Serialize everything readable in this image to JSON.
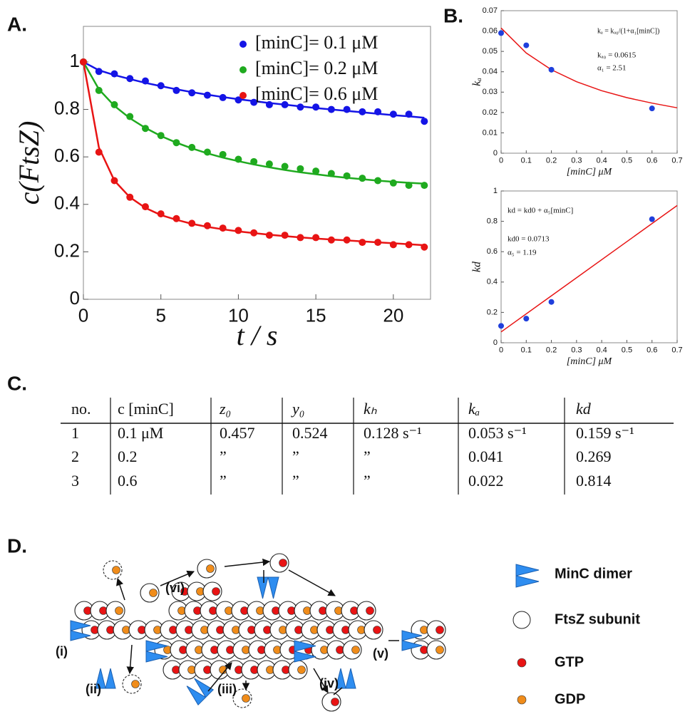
{
  "panel_labels": [
    "A.",
    "B.",
    "C.",
    "D."
  ],
  "chart_data": [
    {
      "type": "scatter-fit",
      "xlabel": "t / s",
      "ylabel": "c(FtsZ)",
      "x": [
        0,
        1,
        2,
        3,
        4,
        5,
        6,
        7,
        8,
        9,
        10,
        11,
        12,
        13,
        14,
        15,
        16,
        17,
        18,
        19,
        20,
        21,
        22
      ],
      "xlim": [
        0,
        22.4
      ],
      "ylim": [
        0,
        1.15
      ],
      "xticks": [
        0,
        5,
        10,
        15,
        20
      ],
      "yticks": [
        0,
        0.2,
        0.4,
        0.6,
        0.8,
        1
      ],
      "series": [
        {
          "name": "[minC]= 0.1 μM",
          "color": "#1414e6",
          "values": [
            1,
            0.96,
            0.95,
            0.93,
            0.92,
            0.9,
            0.88,
            0.87,
            0.86,
            0.85,
            0.84,
            0.83,
            0.82,
            0.82,
            0.81,
            0.81,
            0.8,
            0.8,
            0.79,
            0.79,
            0.78,
            0.78,
            0.75
          ],
          "fit": [
            1,
            0.965,
            0.945,
            0.928,
            0.912,
            0.898,
            0.885,
            0.873,
            0.862,
            0.852,
            0.843,
            0.835,
            0.827,
            0.82,
            0.813,
            0.806,
            0.8,
            0.794,
            0.788,
            0.782,
            0.776,
            0.771,
            0.765
          ]
        },
        {
          "name": "[minC]= 0.2 μM",
          "color": "#1faa1f",
          "values": [
            1,
            0.88,
            0.82,
            0.77,
            0.72,
            0.69,
            0.66,
            0.64,
            0.62,
            0.61,
            0.59,
            0.58,
            0.57,
            0.56,
            0.55,
            0.54,
            0.53,
            0.52,
            0.51,
            0.5,
            0.49,
            0.48,
            0.48
          ],
          "fit": [
            1,
            0.885,
            0.815,
            0.763,
            0.722,
            0.688,
            0.66,
            0.636,
            0.615,
            0.597,
            0.582,
            0.568,
            0.556,
            0.545,
            0.535,
            0.527,
            0.519,
            0.512,
            0.506,
            0.5,
            0.495,
            0.491,
            0.487
          ]
        },
        {
          "name": "[minC]= 0.6 μM",
          "color": "#e81414",
          "values": [
            1,
            0.62,
            0.5,
            0.43,
            0.39,
            0.36,
            0.34,
            0.32,
            0.31,
            0.3,
            0.29,
            0.28,
            0.27,
            0.27,
            0.26,
            0.26,
            0.25,
            0.25,
            0.24,
            0.24,
            0.23,
            0.23,
            0.22
          ],
          "fit": [
            1,
            0.64,
            0.5,
            0.43,
            0.385,
            0.355,
            0.335,
            0.318,
            0.305,
            0.295,
            0.286,
            0.279,
            0.272,
            0.266,
            0.261,
            0.256,
            0.252,
            0.248,
            0.244,
            0.24,
            0.236,
            0.232,
            0.228
          ]
        }
      ]
    },
    {
      "type": "scatter-fit",
      "xlabel": "[minC] μM",
      "ylabel": "kₐ",
      "annotations": [
        "kₐ = kₐ₀/(1+α₁[minC])",
        "kₐ₀ = 0.0615",
        "α₁ = 2.51"
      ],
      "x": [
        0,
        0.1,
        0.2,
        0.6
      ],
      "xlim": [
        0,
        0.7
      ],
      "ylim": [
        0,
        0.07
      ],
      "xticks": [
        0,
        0.1,
        0.2,
        0.3,
        0.4,
        0.5,
        0.6,
        0.7
      ],
      "yticks": [
        0,
        0.01,
        0.02,
        0.03,
        0.04,
        0.05,
        0.06,
        0.07
      ],
      "series": [
        {
          "color": "#1f3fdc",
          "values": [
            0.059,
            0.053,
            0.041,
            0.022
          ]
        }
      ],
      "fit": {
        "color": "#e81414",
        "x": [
          0,
          0.1,
          0.2,
          0.3,
          0.4,
          0.5,
          0.6,
          0.7
        ],
        "values": [
          0.0615,
          0.0492,
          0.041,
          0.0351,
          0.0307,
          0.0273,
          0.0246,
          0.0223
        ]
      }
    },
    {
      "type": "scatter-fit",
      "xlabel": "[minC] μM",
      "ylabel": "kd",
      "annotations": [
        "kd = kd0 + α₅[minC]",
        "kd0 = 0.0713",
        "α₅ = 1.19"
      ],
      "x": [
        0,
        0.1,
        0.2,
        0.6
      ],
      "xlim": [
        0,
        0.7
      ],
      "ylim": [
        0,
        1
      ],
      "xticks": [
        0,
        0.1,
        0.2,
        0.3,
        0.4,
        0.5,
        0.6,
        0.7
      ],
      "yticks": [
        0,
        0.2,
        0.4,
        0.6,
        0.8,
        1
      ],
      "series": [
        {
          "color": "#1f3fdc",
          "values": [
            0.111,
            0.159,
            0.269,
            0.814
          ]
        }
      ],
      "fit": {
        "color": "#e81414",
        "x": [
          0,
          0.7
        ],
        "values": [
          0.0713,
          0.9043
        ]
      }
    }
  ],
  "table": {
    "header": [
      "no.",
      "c [minC]",
      "z₀",
      "y₀",
      "kₕ",
      "kₐ",
      "kd"
    ],
    "rows": [
      [
        "1",
        "0.1 μM",
        "0.457",
        "0.524",
        "0.128 s⁻¹",
        "0.053 s⁻¹",
        "0.159 s⁻¹"
      ],
      [
        "2",
        "0.2",
        "”",
        "”",
        "”",
        "0.041",
        "0.269"
      ],
      [
        "3",
        "0.6",
        "”",
        "”",
        "”",
        "0.022",
        "0.814"
      ]
    ]
  },
  "diagram": {
    "labels": [
      "(i)",
      "(ii)",
      "(iii)",
      "(iv)",
      "(v)",
      "(vi)"
    ],
    "legend": [
      "MinC dimer",
      "FtsZ subunit",
      "GTP",
      "GDP"
    ]
  }
}
